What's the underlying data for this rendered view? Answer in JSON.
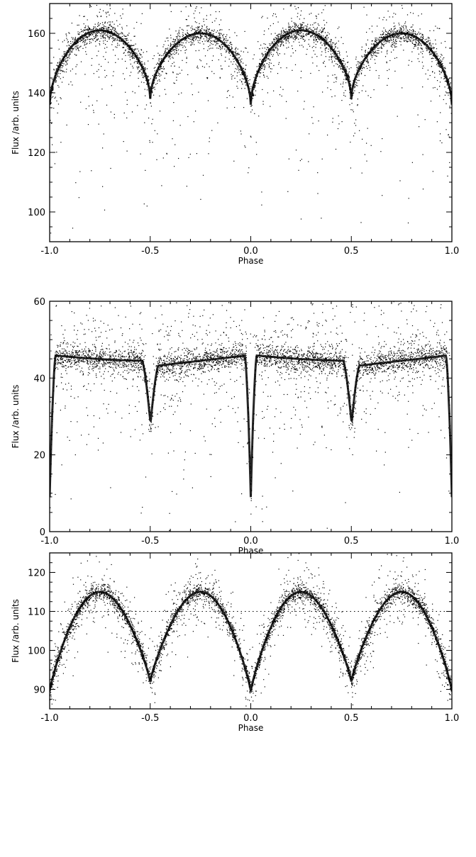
{
  "chart_data": [
    {
      "type": "scatter",
      "title": "",
      "xlabel": "Phase",
      "ylabel": "Flux /arb. units",
      "xlim": [
        -1.0,
        1.0
      ],
      "ylim": [
        90,
        170
      ],
      "xticks": [
        -1.0,
        -0.5,
        0.0,
        0.5,
        1.0
      ],
      "xtick_labels": [
        "-1.0",
        "-0.5",
        "0.0",
        "0.5",
        "1.0"
      ],
      "yticks": [
        100,
        120,
        140,
        160
      ],
      "ytick_labels": [
        "100",
        "120",
        "140",
        "160"
      ],
      "grid": false,
      "marker": "dot",
      "color": "#000000",
      "light_curve": {
        "primary_minimum": {
          "phase": 0.0,
          "flux": 136
        },
        "secondary_minimum": {
          "phase": 0.5,
          "flux": 138
        },
        "maxima": [
          {
            "phase": 0.25,
            "flux": 161
          },
          {
            "phase": 0.75,
            "flux": 160
          }
        ],
        "scatter_low_to": 100
      }
    },
    {
      "type": "scatter",
      "title": "",
      "xlabel": "Phase",
      "ylabel": "Flux /arb. units",
      "xlim": [
        -1.0,
        1.0
      ],
      "ylim": [
        0,
        60
      ],
      "xticks": [
        -1.0,
        -0.5,
        0.0,
        0.5,
        1.0
      ],
      "xtick_labels": [
        "-1.0",
        "-0.5",
        "0.0",
        "0.5",
        "1.0"
      ],
      "yticks": [
        0,
        20,
        40,
        60
      ],
      "ytick_labels": [
        "0",
        "20",
        "40",
        "60"
      ],
      "grid": false,
      "marker": "dot",
      "color": "#000000",
      "light_curve": {
        "primary_minimum": {
          "phase": 0.0,
          "flux": 9
        },
        "secondary_minimum": {
          "phase": 0.5,
          "flux": 29
        },
        "out_of_eclipse_level": 46,
        "post_secondary_level": 43,
        "scatter_range": [
          20,
          60
        ]
      }
    },
    {
      "type": "scatter",
      "title": "",
      "xlabel": "Phase",
      "ylabel": "Flux /arb. units",
      "xlim": [
        -1.0,
        1.0
      ],
      "ylim": [
        85,
        125
      ],
      "xticks": [
        -1.0,
        -0.5,
        0.0,
        0.5,
        1.0
      ],
      "xtick_labels": [
        "-1.0",
        "-0.5",
        "0.0",
        "0.5",
        "1.0"
      ],
      "yticks": [
        90,
        100,
        110,
        120
      ],
      "ytick_labels": [
        "90",
        "100",
        "110",
        "120"
      ],
      "grid": false,
      "marker": "dot",
      "color": "#000000",
      "light_curve": {
        "primary_minimum": {
          "phase": 0.0,
          "flux": 89.5
        },
        "secondary_minimum": {
          "phase": 0.5,
          "flux": 92
        },
        "maxima": [
          {
            "phase": 0.25,
            "flux": 115
          },
          {
            "phase": 0.75,
            "flux": 115
          }
        ],
        "reference_level": 110
      }
    }
  ]
}
